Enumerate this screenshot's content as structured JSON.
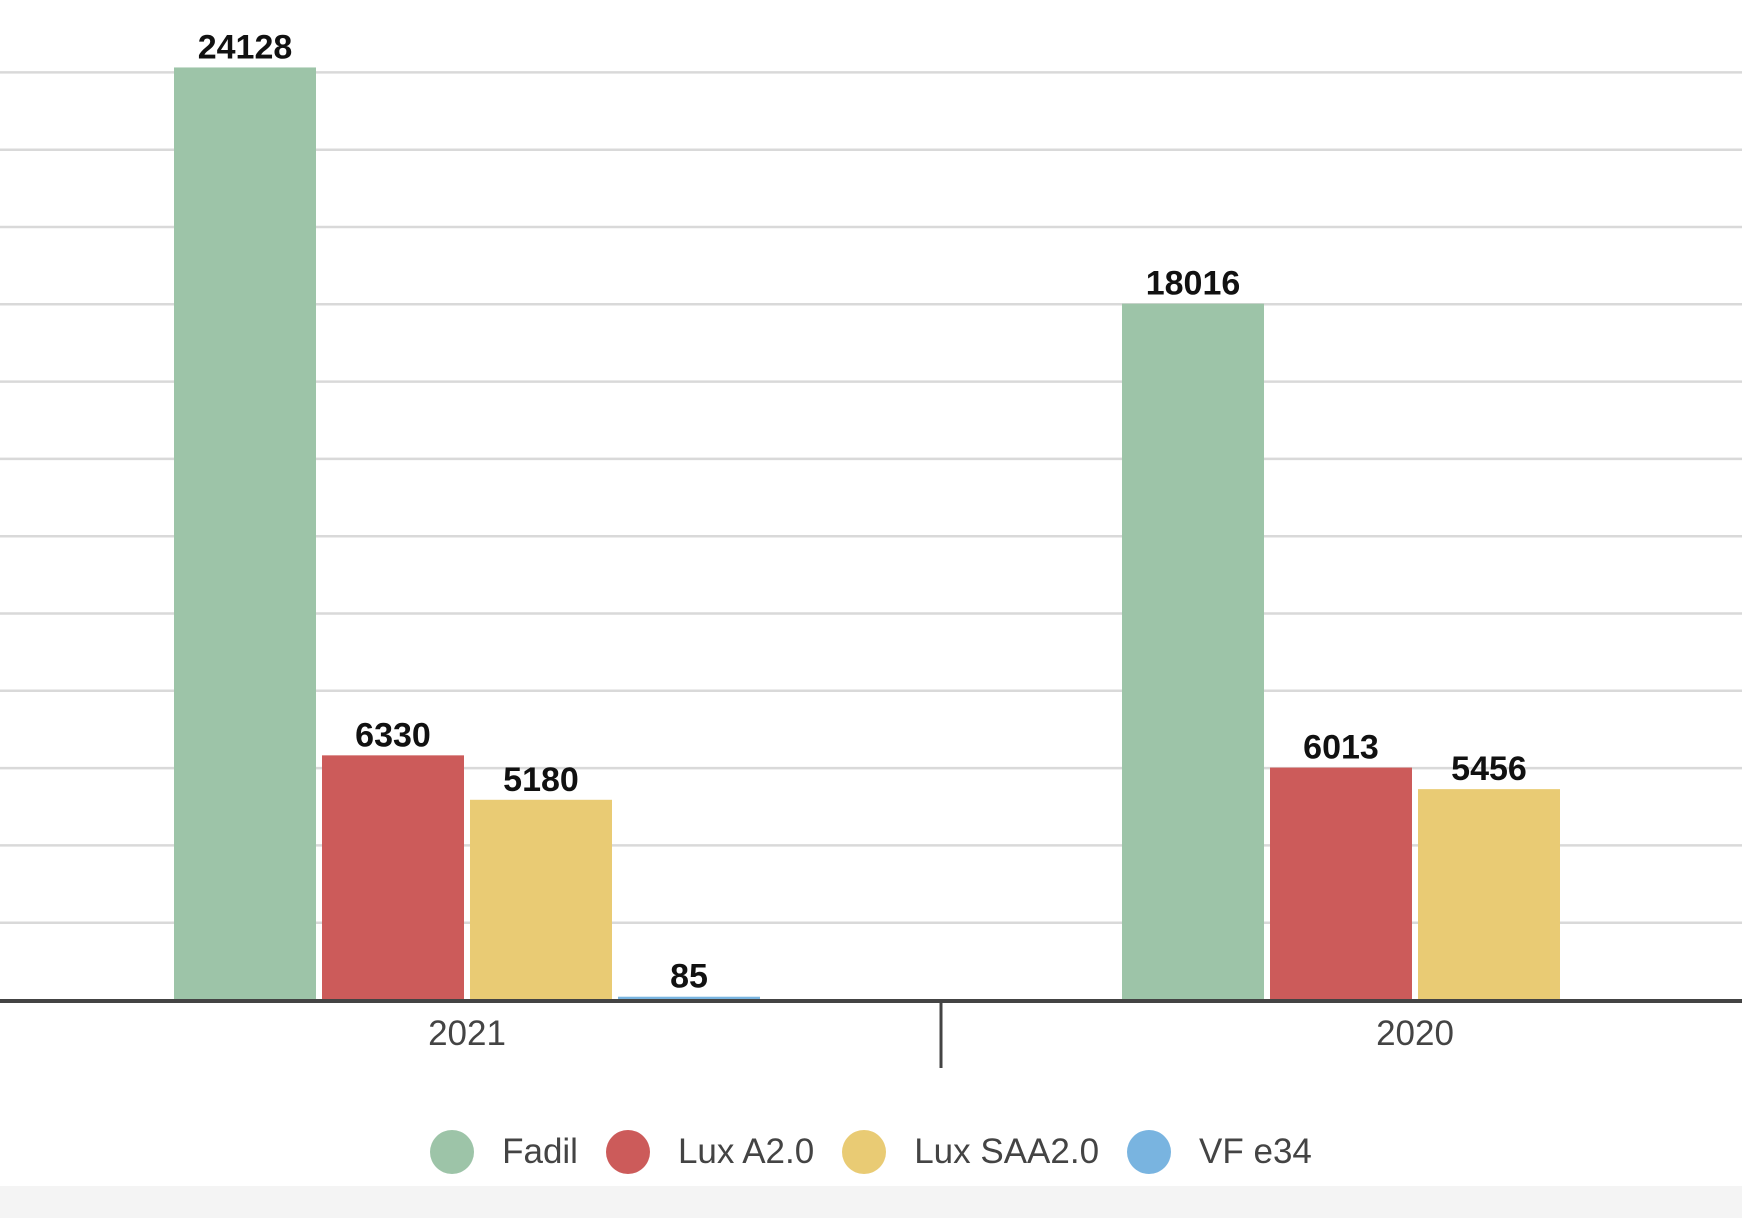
{
  "chart_data": {
    "type": "bar",
    "title": "",
    "xlabel": "",
    "ylabel": "",
    "categories": [
      "2021",
      "2020"
    ],
    "series": [
      {
        "name": "Fadil",
        "color": "#9dc4a8",
        "values": [
          24128,
          18016
        ]
      },
      {
        "name": "Lux A2.0",
        "color": "#cc5b5a",
        "values": [
          6330,
          6013
        ]
      },
      {
        "name": "Lux SAA2.0",
        "color": "#e9cb74",
        "values": [
          5180,
          5456
        ]
      },
      {
        "name": "VF e34",
        "color": "#79b4e0",
        "values": [
          85,
          null
        ]
      }
    ],
    "ylim": [
      0,
      24000
    ],
    "grid": true,
    "legend_position": "bottom",
    "data_labels": true
  }
}
